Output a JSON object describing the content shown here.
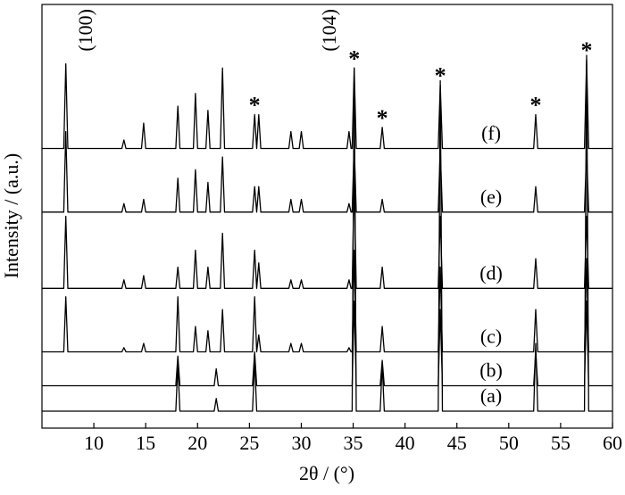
{
  "chart_data": {
    "type": "line",
    "xlabel": "2θ / (°)",
    "ylabel": "Intensity / (a.u.)",
    "xlim": [
      5,
      60
    ],
    "xticks": [
      10,
      15,
      20,
      25,
      30,
      35,
      40,
      45,
      50,
      55,
      60
    ],
    "ylim": [
      0,
      100
    ],
    "x": [
      5,
      7.1,
      7.3,
      7.5,
      12.7,
      12.9,
      13.1,
      14.6,
      14.8,
      15.0,
      17.9,
      18.1,
      18.3,
      19.6,
      19.8,
      20.0,
      20.8,
      21.0,
      21.2,
      21.6,
      21.8,
      22.0,
      22.2,
      22.4,
      22.6,
      25.3,
      25.5,
      25.7,
      25.7,
      25.9,
      26.1,
      28.8,
      29.0,
      29.2,
      29.8,
      30.0,
      30.2,
      34.4,
      34.6,
      34.8,
      34.9,
      35.1,
      35.3,
      37.6,
      37.8,
      38.0,
      43.2,
      43.4,
      43.6,
      52.4,
      52.6,
      52.8,
      57.3,
      57.5,
      57.7,
      60
    ],
    "series": [
      {
        "name": "(a)",
        "color": "#000000",
        "values": [
          4,
          4,
          4,
          4,
          4,
          4,
          4,
          4,
          4,
          4,
          4,
          15,
          4,
          4,
          4,
          4,
          4,
          4,
          4,
          4,
          7,
          4,
          4,
          4,
          4,
          4,
          16,
          4,
          4,
          4,
          4,
          4,
          4,
          4,
          4,
          4,
          4,
          4,
          4,
          4,
          4,
          85,
          4,
          4,
          15,
          4,
          4,
          82,
          4,
          4,
          20,
          4,
          4,
          88,
          4,
          4
        ]
      },
      {
        "name": "(b)",
        "color": "#000000",
        "values": [
          10,
          10,
          10,
          10,
          10,
          10,
          10,
          10,
          10,
          10,
          10,
          17,
          10,
          10,
          10,
          10,
          10,
          10,
          10,
          10,
          14,
          10,
          10,
          10,
          10,
          10,
          18,
          10,
          10,
          10,
          10,
          10,
          10,
          10,
          10,
          10,
          10,
          10,
          10,
          10,
          10,
          30,
          10,
          10,
          16,
          10,
          10,
          28,
          10,
          10,
          18,
          10,
          10,
          30,
          10,
          10
        ]
      },
      {
        "name": "(c)",
        "color": "#000000",
        "values": [
          18,
          18,
          31,
          18,
          18,
          19,
          18,
          18,
          20,
          18,
          18,
          31,
          18,
          18,
          24,
          18,
          18,
          23,
          18,
          18,
          18,
          18,
          18,
          28,
          18,
          18,
          31,
          18,
          18,
          22,
          18,
          18,
          20,
          18,
          18,
          20,
          18,
          18,
          19,
          18,
          18,
          42,
          18,
          18,
          24,
          18,
          18,
          38,
          18,
          18,
          28,
          18,
          18,
          40,
          18,
          18
        ]
      },
      {
        "name": "(d)",
        "color": "#000000",
        "values": [
          33,
          33,
          50,
          33,
          33,
          35,
          33,
          33,
          36,
          33,
          33,
          38,
          33,
          33,
          42,
          33,
          33,
          38,
          33,
          33,
          33,
          33,
          33,
          46,
          33,
          33,
          42,
          33,
          33,
          39,
          33,
          33,
          35,
          33,
          33,
          35,
          33,
          33,
          35,
          33,
          33,
          59,
          33,
          33,
          38,
          33,
          33,
          50,
          33,
          33,
          40,
          33,
          33,
          50,
          33,
          33
        ]
      },
      {
        "name": "(e)",
        "color": "#000000",
        "values": [
          51,
          51,
          70,
          51,
          51,
          53,
          51,
          51,
          54,
          51,
          51,
          59,
          51,
          51,
          61,
          51,
          51,
          58,
          51,
          51,
          51,
          51,
          51,
          64,
          51,
          51,
          57,
          51,
          51,
          57,
          51,
          51,
          54,
          51,
          51,
          54,
          51,
          51,
          53,
          51,
          51,
          67,
          51,
          51,
          54,
          51,
          51,
          66,
          51,
          51,
          57,
          51,
          51,
          66,
          51,
          51
        ]
      },
      {
        "name": "(f)",
        "color": "#000000",
        "values": [
          66,
          66,
          86,
          66,
          66,
          68,
          66,
          66,
          72,
          66,
          66,
          76,
          66,
          66,
          79,
          66,
          66,
          75,
          66,
          66,
          66,
          66,
          66,
          85,
          66,
          66,
          74,
          66,
          66,
          74,
          66,
          66,
          70,
          66,
          66,
          70,
          66,
          66,
          70,
          66,
          66,
          85,
          66,
          66,
          71,
          66,
          66,
          81,
          66,
          66,
          74,
          66,
          66,
          87,
          66,
          66
        ]
      }
    ],
    "peak_labels": [
      {
        "text": "(100)",
        "x": 7.3
      },
      {
        "text": "(104)",
        "x": 35.1
      }
    ],
    "peak_marker": "*",
    "marked_peaks": [
      25.5,
      35.1,
      37.8,
      43.4,
      52.6,
      57.5
    ]
  }
}
